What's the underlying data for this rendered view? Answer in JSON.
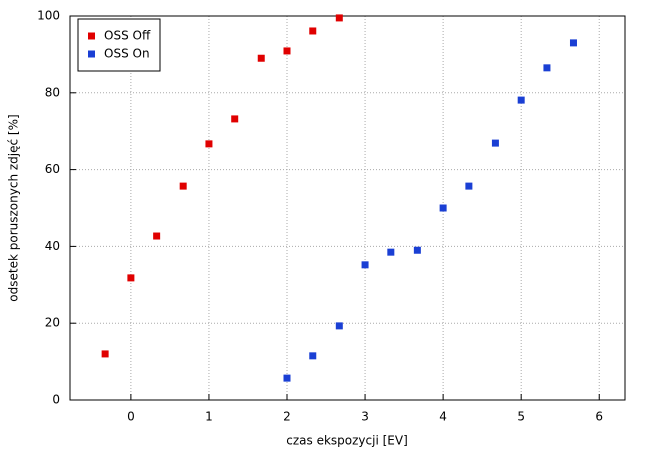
{
  "chart_data": {
    "type": "scatter",
    "xlabel": "czas ekspozycji [EV]",
    "ylabel": "odsetek poruszonych zdjęć [%]",
    "xlim": [
      -0.78,
      6.33
    ],
    "ylim": [
      0,
      100
    ],
    "xticks": [
      0,
      1,
      2,
      3,
      4,
      5,
      6
    ],
    "yticks": [
      0,
      20,
      40,
      60,
      80,
      100
    ],
    "grid": true,
    "legend": "upper left",
    "series": [
      {
        "name": "OSS Off",
        "color": "#e00000",
        "x": [
          -0.33,
          0,
          0.33,
          0.67,
          1,
          1.33,
          1.67,
          2,
          2.33,
          2.67
        ],
        "values": [
          12,
          31.8,
          42.7,
          55.7,
          66.7,
          73.2,
          89,
          90.9,
          96.1,
          99.5
        ]
      },
      {
        "name": "OSS On",
        "color": "#1a3fd4",
        "x": [
          2,
          2.33,
          2.67,
          3,
          3.33,
          3.67,
          4,
          4.33,
          4.67,
          5,
          5.33,
          5.67
        ],
        "values": [
          5.7,
          11.5,
          19.3,
          35.2,
          38.5,
          39,
          50,
          55.7,
          66.9,
          78.1,
          86.5,
          93
        ]
      }
    ]
  }
}
